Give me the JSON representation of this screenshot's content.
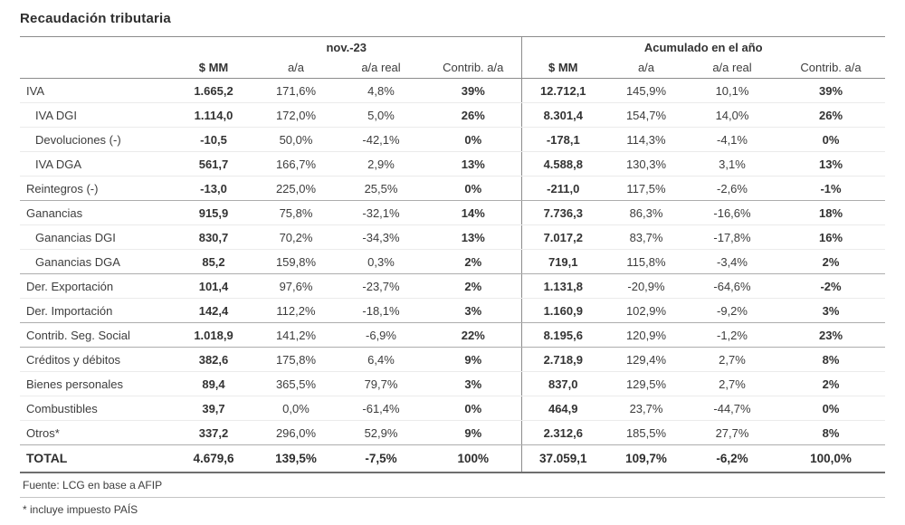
{
  "title": "Recaudación tributaria",
  "chart_data": {
    "type": "table",
    "title": "Recaudación tributaria",
    "column_groups": [
      "nov.-23",
      "Acumulado en el año"
    ],
    "columns": [
      "$ MM",
      "a/a",
      "a/a real",
      "Contrib. a/a"
    ],
    "rows": [
      {
        "label": "IVA",
        "indent": false,
        "sep": false,
        "total": false,
        "nov": [
          "1.665,2",
          "171,6%",
          "4,8%",
          "39%"
        ],
        "acum": [
          "12.712,1",
          "145,9%",
          "10,1%",
          "39%"
        ]
      },
      {
        "label": "IVA DGI",
        "indent": true,
        "sep": false,
        "total": false,
        "nov": [
          "1.114,0",
          "172,0%",
          "5,0%",
          "26%"
        ],
        "acum": [
          "8.301,4",
          "154,7%",
          "14,0%",
          "26%"
        ]
      },
      {
        "label": "Devoluciones (-)",
        "indent": true,
        "sep": false,
        "total": false,
        "nov": [
          "-10,5",
          "50,0%",
          "-42,1%",
          "0%"
        ],
        "acum": [
          "-178,1",
          "114,3%",
          "-4,1%",
          "0%"
        ]
      },
      {
        "label": "IVA DGA",
        "indent": true,
        "sep": false,
        "total": false,
        "nov": [
          "561,7",
          "166,7%",
          "2,9%",
          "13%"
        ],
        "acum": [
          "4.588,8",
          "130,3%",
          "3,1%",
          "13%"
        ]
      },
      {
        "label": "Reintegros (-)",
        "indent": false,
        "sep": true,
        "total": false,
        "nov": [
          "-13,0",
          "225,0%",
          "25,5%",
          "0%"
        ],
        "acum": [
          "-211,0",
          "117,5%",
          "-2,6%",
          "-1%"
        ]
      },
      {
        "label": "Ganancias",
        "indent": false,
        "sep": false,
        "total": false,
        "nov": [
          "915,9",
          "75,8%",
          "-32,1%",
          "14%"
        ],
        "acum": [
          "7.736,3",
          "86,3%",
          "-16,6%",
          "18%"
        ]
      },
      {
        "label": "Ganancias DGI",
        "indent": true,
        "sep": false,
        "total": false,
        "nov": [
          "830,7",
          "70,2%",
          "-34,3%",
          "13%"
        ],
        "acum": [
          "7.017,2",
          "83,7%",
          "-17,8%",
          "16%"
        ]
      },
      {
        "label": "Ganancias DGA",
        "indent": true,
        "sep": true,
        "total": false,
        "nov": [
          "85,2",
          "159,8%",
          "0,3%",
          "2%"
        ],
        "acum": [
          "719,1",
          "115,8%",
          "-3,4%",
          "2%"
        ]
      },
      {
        "label": "Der. Exportación",
        "indent": false,
        "sep": false,
        "total": false,
        "nov": [
          "101,4",
          "97,6%",
          "-23,7%",
          "2%"
        ],
        "acum": [
          "1.131,8",
          "-20,9%",
          "-64,6%",
          "-2%"
        ]
      },
      {
        "label": "Der. Importación",
        "indent": false,
        "sep": true,
        "total": false,
        "nov": [
          "142,4",
          "112,2%",
          "-18,1%",
          "3%"
        ],
        "acum": [
          "1.160,9",
          "102,9%",
          "-9,2%",
          "3%"
        ]
      },
      {
        "label": "Contrib. Seg. Social",
        "indent": false,
        "sep": true,
        "total": false,
        "nov": [
          "1.018,9",
          "141,2%",
          "-6,9%",
          "22%"
        ],
        "acum": [
          "8.195,6",
          "120,9%",
          "-1,2%",
          "23%"
        ]
      },
      {
        "label": "Créditos y débitos",
        "indent": false,
        "sep": false,
        "total": false,
        "nov": [
          "382,6",
          "175,8%",
          "6,4%",
          "9%"
        ],
        "acum": [
          "2.718,9",
          "129,4%",
          "2,7%",
          "8%"
        ]
      },
      {
        "label": "Bienes personales",
        "indent": false,
        "sep": false,
        "total": false,
        "nov": [
          "89,4",
          "365,5%",
          "79,7%",
          "3%"
        ],
        "acum": [
          "837,0",
          "129,5%",
          "2,7%",
          "2%"
        ]
      },
      {
        "label": "Combustibles",
        "indent": false,
        "sep": false,
        "total": false,
        "nov": [
          "39,7",
          "0,0%",
          "-61,4%",
          "0%"
        ],
        "acum": [
          "464,9",
          "23,7%",
          "-44,7%",
          "0%"
        ]
      },
      {
        "label": "Otros*",
        "indent": false,
        "sep": true,
        "total": false,
        "nov": [
          "337,2",
          "296,0%",
          "52,9%",
          "9%"
        ],
        "acum": [
          "2.312,6",
          "185,5%",
          "27,7%",
          "8%"
        ]
      },
      {
        "label": "TOTAL",
        "indent": false,
        "sep": false,
        "total": true,
        "nov": [
          "4.679,6",
          "139,5%",
          "-7,5%",
          "100%"
        ],
        "acum": [
          "37.059,1",
          "109,7%",
          "-6,2%",
          "100,0%"
        ]
      }
    ]
  },
  "footnotes": [
    "Fuente: LCG en base a AFIP",
    "* incluye impuesto PAÍS"
  ]
}
